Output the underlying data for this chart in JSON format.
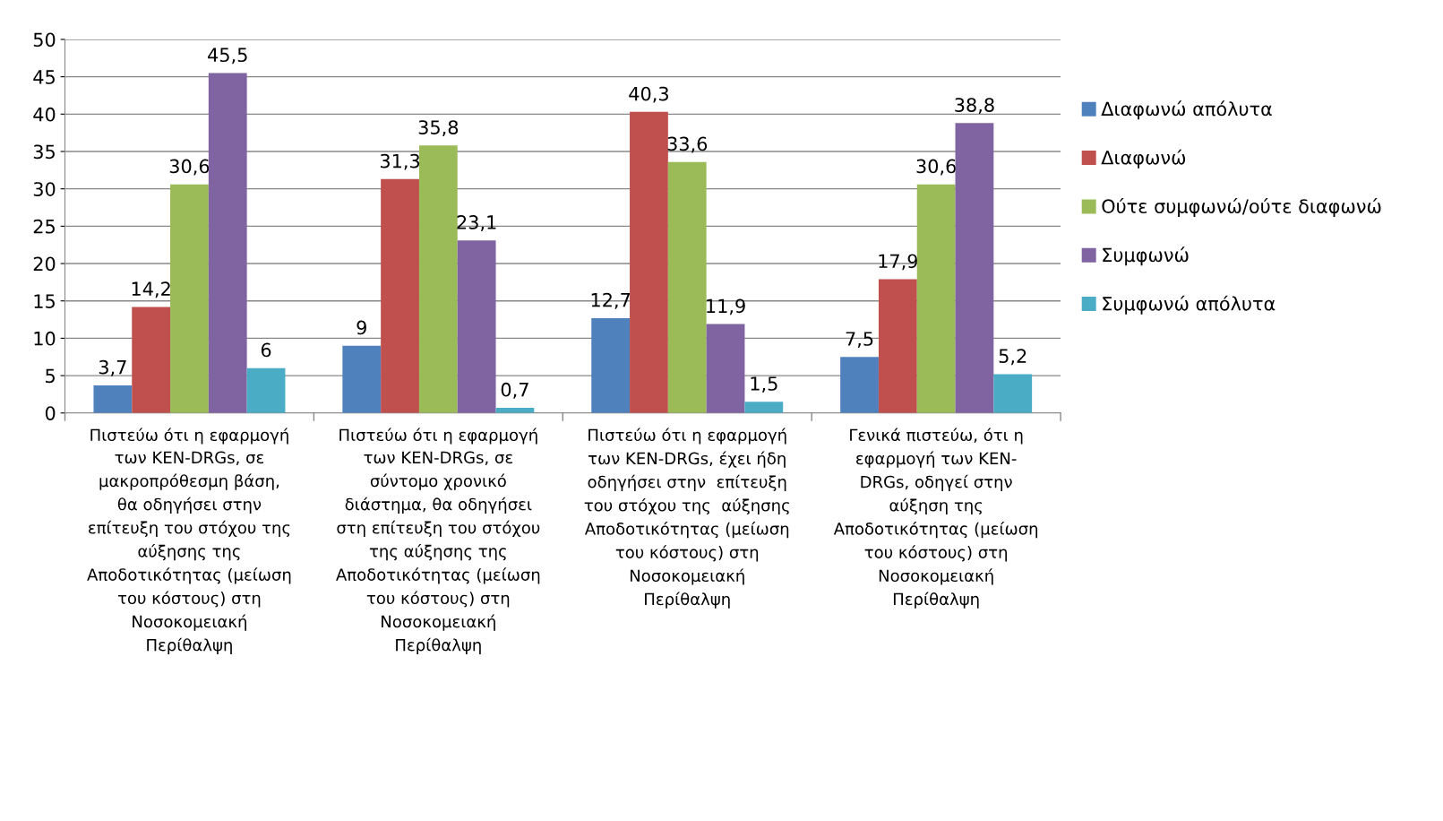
{
  "chart_data": {
    "type": "bar",
    "categories": [
      "Πιστεύω ότι η εφαρμογή\nτων ΚΕΝ-DRGs, σε\nμακροπρόθεσμη βάση,\nθα οδηγήσει στην\nεπίτευξη του στόχου της\nαύξησης της\nΑποδοτικότητας (μείωση\nτου κόστους) στη\nΝοσοκομειακή\nΠερίθαλψη",
      "Πιστεύω ότι η εφαρμογή\nτων ΚΕΝ-DRGs, σε\nσύντομο χρονικό\nδιάστημα, θα οδηγήσει\nστη επίτευξη του στόχου\nτης αύξησης της\nΑποδοτικότητας (μείωση\nτου κόστους) στη\nΝοσοκομειακή\nΠερίθαλψη",
      "Πιστεύω ότι η εφαρμογή\nτων ΚΕΝ-DRGs, έχει ήδη\nοδηγήσει στην  επίτευξη\nτου στόχου της  αύξησης\nΑποδοτικότητας (μείωση\nτου κόστους) στη\nΝοσοκομειακή\nΠερίθαλψη",
      "Γενικά πιστεύω, ότι η\nεφαρμογή των ΚΕΝ-\nDRGs, οδηγεί στην\nαύξηση της\nΑποδοτικότητας (μείωση\nτου κόστους) στη\nΝοσοκομειακή\nΠερίθαλψη"
    ],
    "series": [
      {
        "name": "Διαφωνώ απόλυτα",
        "color": "#4f81bd",
        "values": [
          3.7,
          9,
          12.7,
          7.5
        ],
        "value_labels": [
          "3,7",
          "9",
          "12,7",
          "7,5"
        ]
      },
      {
        "name": "Διαφωνώ",
        "color": "#c0504d",
        "values": [
          14.2,
          31.3,
          40.3,
          17.9
        ],
        "value_labels": [
          "14,2",
          "31,3",
          "40,3",
          "17,9"
        ]
      },
      {
        "name": "Ούτε συμφωνώ/ούτε διαφωνώ",
        "color": "#9bbb59",
        "values": [
          30.6,
          35.8,
          33.6,
          30.6
        ],
        "value_labels": [
          "30,6",
          "35,8",
          "33,6",
          "30,6"
        ]
      },
      {
        "name": "Συμφωνώ",
        "color": "#8064a2",
        "values": [
          45.5,
          23.1,
          11.9,
          38.8
        ],
        "value_labels": [
          "45,5",
          "23,1",
          "11,9",
          "38,8"
        ]
      },
      {
        "name": "Συμφωνώ απόλυτα",
        "color": "#4bacc6",
        "values": [
          6,
          0.7,
          1.5,
          5.2
        ],
        "value_labels": [
          "6",
          "0,7",
          "1,5",
          "5,2"
        ]
      }
    ],
    "ylim": [
      0,
      50
    ],
    "yticks": [
      0,
      5,
      10,
      15,
      20,
      25,
      30,
      35,
      40,
      45,
      50
    ],
    "grid": "y",
    "legend": "right"
  }
}
